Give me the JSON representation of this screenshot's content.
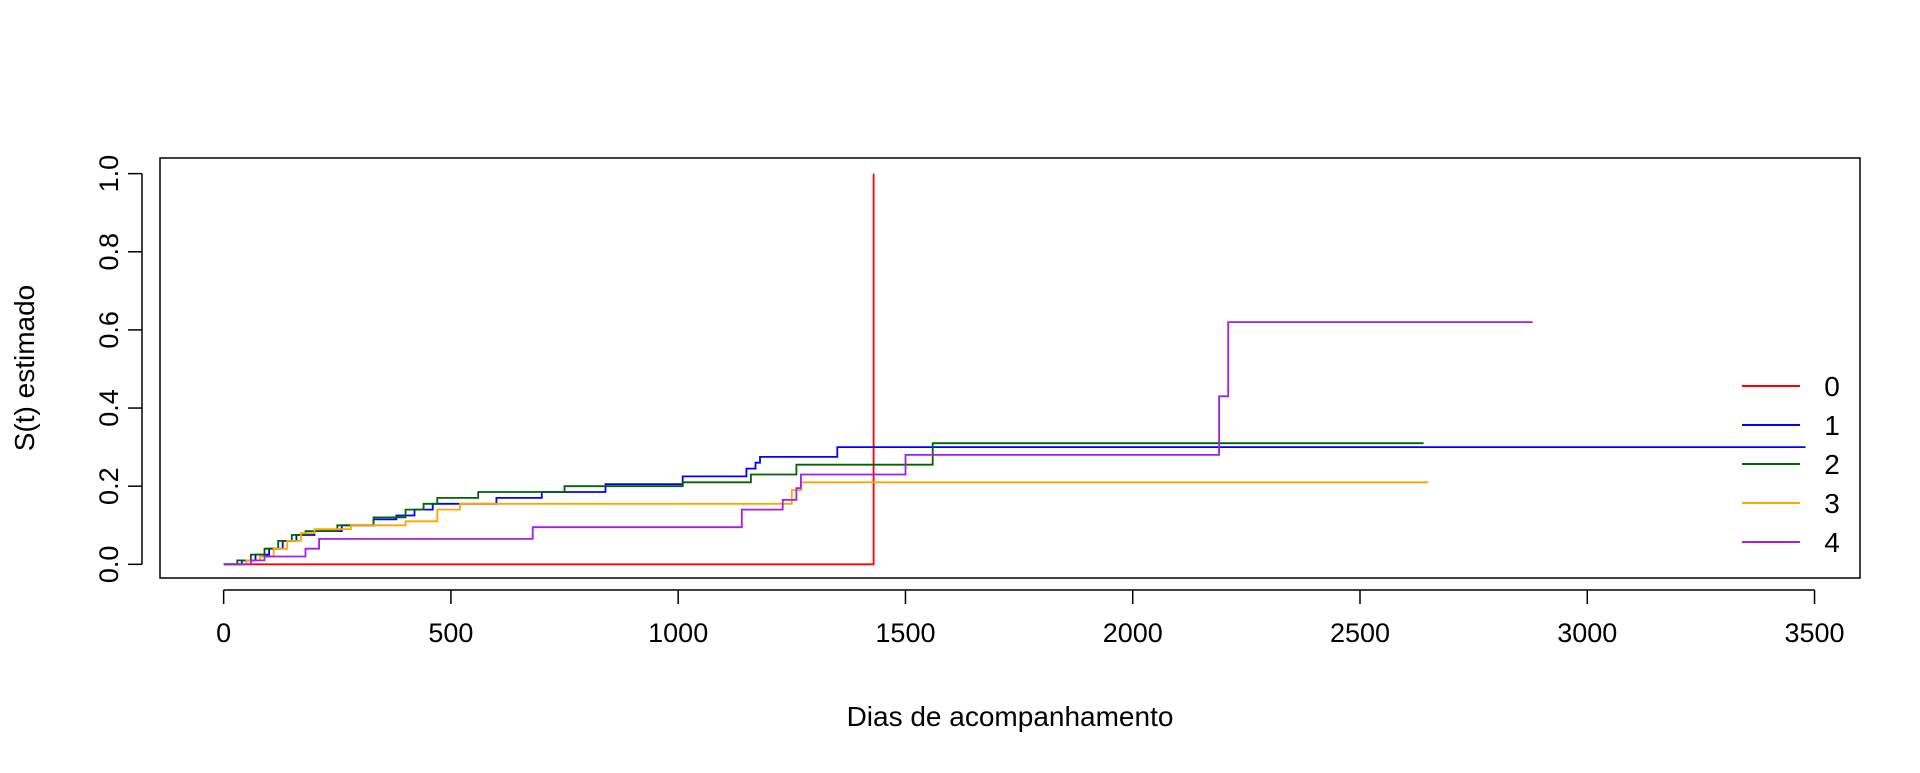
{
  "chart_data": {
    "type": "line",
    "title": "",
    "xlabel": "Dias de acompanhamento",
    "ylabel": "S(t) estimado",
    "xlim": [
      -140,
      3600
    ],
    "ylim": [
      -0.035,
      1.04
    ],
    "x_ticks": [
      "0",
      "500",
      "1000",
      "1500",
      "2000",
      "2500",
      "3000",
      "3500"
    ],
    "y_ticks": [
      "0.0",
      "0.2",
      "0.4",
      "0.6",
      "0.8",
      "1.0"
    ],
    "grid": false,
    "legend": "right",
    "series": [
      {
        "name": "0",
        "color": "#ff0000",
        "step": [
          [
            0,
            0.0
          ],
          [
            1430,
            0.0
          ],
          [
            1430,
            1.0
          ]
        ]
      },
      {
        "name": "1",
        "color": "#0000ff",
        "step": [
          [
            0,
            0.0
          ],
          [
            40,
            0.01
          ],
          [
            70,
            0.025
          ],
          [
            100,
            0.04
          ],
          [
            130,
            0.06
          ],
          [
            160,
            0.075
          ],
          [
            200,
            0.085
          ],
          [
            260,
            0.1
          ],
          [
            330,
            0.115
          ],
          [
            380,
            0.125
          ],
          [
            420,
            0.14
          ],
          [
            460,
            0.155
          ],
          [
            600,
            0.17
          ],
          [
            700,
            0.185
          ],
          [
            840,
            0.205
          ],
          [
            1010,
            0.225
          ],
          [
            1150,
            0.245
          ],
          [
            1170,
            0.26
          ],
          [
            1180,
            0.275
          ],
          [
            1350,
            0.3
          ],
          [
            3480,
            0.3
          ]
        ]
      },
      {
        "name": "2",
        "color": "#006400",
        "step": [
          [
            0,
            0.0
          ],
          [
            30,
            0.01
          ],
          [
            60,
            0.025
          ],
          [
            90,
            0.04
          ],
          [
            120,
            0.06
          ],
          [
            150,
            0.075
          ],
          [
            180,
            0.085
          ],
          [
            250,
            0.1
          ],
          [
            330,
            0.12
          ],
          [
            400,
            0.14
          ],
          [
            440,
            0.155
          ],
          [
            470,
            0.17
          ],
          [
            560,
            0.185
          ],
          [
            750,
            0.2
          ],
          [
            1010,
            0.21
          ],
          [
            1160,
            0.23
          ],
          [
            1260,
            0.255
          ],
          [
            1560,
            0.31
          ],
          [
            2640,
            0.31
          ]
        ]
      },
      {
        "name": "3",
        "color": "#ffa500",
        "step": [
          [
            0,
            0.0
          ],
          [
            50,
            0.01
          ],
          [
            80,
            0.02
          ],
          [
            110,
            0.04
          ],
          [
            140,
            0.06
          ],
          [
            170,
            0.08
          ],
          [
            200,
            0.09
          ],
          [
            280,
            0.1
          ],
          [
            400,
            0.11
          ],
          [
            470,
            0.14
          ],
          [
            520,
            0.155
          ],
          [
            1240,
            0.155
          ],
          [
            1250,
            0.19
          ],
          [
            1270,
            0.21
          ],
          [
            2650,
            0.21
          ]
        ]
      },
      {
        "name": "4",
        "color": "#a020f0",
        "step": [
          [
            0,
            0.0
          ],
          [
            60,
            0.01
          ],
          [
            90,
            0.02
          ],
          [
            180,
            0.04
          ],
          [
            210,
            0.065
          ],
          [
            680,
            0.095
          ],
          [
            1140,
            0.14
          ],
          [
            1230,
            0.165
          ],
          [
            1260,
            0.195
          ],
          [
            1270,
            0.23
          ],
          [
            1500,
            0.28
          ],
          [
            2190,
            0.43
          ],
          [
            2210,
            0.62
          ],
          [
            2880,
            0.62
          ]
        ]
      }
    ]
  }
}
